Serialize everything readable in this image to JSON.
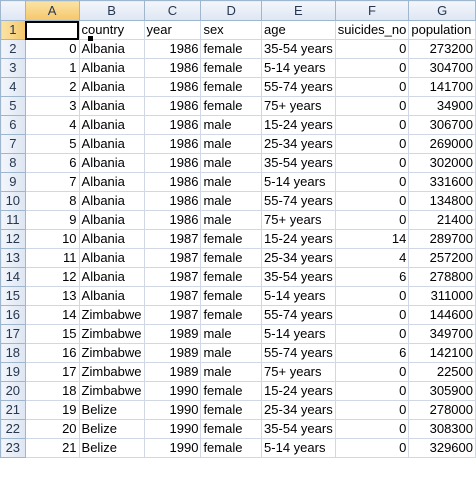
{
  "columns": [
    "A",
    "B",
    "C",
    "D",
    "E",
    "F",
    "G"
  ],
  "header_row": {
    "row_number": "1",
    "cells": [
      "",
      "country",
      "year",
      "sex",
      "age",
      "suicides_no",
      "population"
    ]
  },
  "rows": [
    {
      "n": "2",
      "cells": [
        "0",
        "Albania",
        "1986",
        "female",
        "35-54 years",
        "0",
        "273200"
      ]
    },
    {
      "n": "3",
      "cells": [
        "1",
        "Albania",
        "1986",
        "female",
        "5-14 years",
        "0",
        "304700"
      ]
    },
    {
      "n": "4",
      "cells": [
        "2",
        "Albania",
        "1986",
        "female",
        "55-74 years",
        "0",
        "141700"
      ]
    },
    {
      "n": "5",
      "cells": [
        "3",
        "Albania",
        "1986",
        "female",
        "75+ years",
        "0",
        "34900"
      ]
    },
    {
      "n": "6",
      "cells": [
        "4",
        "Albania",
        "1986",
        "male",
        "15-24 years",
        "0",
        "306700"
      ]
    },
    {
      "n": "7",
      "cells": [
        "5",
        "Albania",
        "1986",
        "male",
        "25-34 years",
        "0",
        "269000"
      ]
    },
    {
      "n": "8",
      "cells": [
        "6",
        "Albania",
        "1986",
        "male",
        "35-54 years",
        "0",
        "302000"
      ]
    },
    {
      "n": "9",
      "cells": [
        "7",
        "Albania",
        "1986",
        "male",
        "5-14 years",
        "0",
        "331600"
      ]
    },
    {
      "n": "10",
      "cells": [
        "8",
        "Albania",
        "1986",
        "male",
        "55-74 years",
        "0",
        "134800"
      ]
    },
    {
      "n": "11",
      "cells": [
        "9",
        "Albania",
        "1986",
        "male",
        "75+ years",
        "0",
        "21400"
      ]
    },
    {
      "n": "12",
      "cells": [
        "10",
        "Albania",
        "1987",
        "female",
        "15-24 years",
        "14",
        "289700"
      ]
    },
    {
      "n": "13",
      "cells": [
        "11",
        "Albania",
        "1987",
        "female",
        "25-34 years",
        "4",
        "257200"
      ]
    },
    {
      "n": "14",
      "cells": [
        "12",
        "Albania",
        "1987",
        "female",
        "35-54 years",
        "6",
        "278800"
      ]
    },
    {
      "n": "15",
      "cells": [
        "13",
        "Albania",
        "1987",
        "female",
        "5-14 years",
        "0",
        "311000"
      ]
    },
    {
      "n": "16",
      "cells": [
        "14",
        "Zimbabwe",
        "1987",
        "female",
        "55-74 years",
        "0",
        "144600"
      ]
    },
    {
      "n": "17",
      "cells": [
        "15",
        "Zimbabwe",
        "1989",
        "male",
        "5-14 years",
        "0",
        "349700"
      ]
    },
    {
      "n": "18",
      "cells": [
        "16",
        "Zimbabwe",
        "1989",
        "male",
        "55-74 years",
        "6",
        "142100"
      ]
    },
    {
      "n": "19",
      "cells": [
        "17",
        "Zimbabwe",
        "1989",
        "male",
        "75+ years",
        "0",
        "22500"
      ]
    },
    {
      "n": "20",
      "cells": [
        "18",
        "Zimbabwe",
        "1990",
        "female",
        "15-24 years",
        "0",
        "305900"
      ]
    },
    {
      "n": "21",
      "cells": [
        "19",
        "Belize",
        "1990",
        "female",
        "25-34 years",
        "0",
        "278000"
      ]
    },
    {
      "n": "22",
      "cells": [
        "20",
        "Belize",
        "1990",
        "female",
        "35-54 years",
        "0",
        "308300"
      ]
    },
    {
      "n": "23",
      "cells": [
        "21",
        "Belize",
        "1990",
        "female",
        "5-14 years",
        "0",
        "329600"
      ]
    }
  ],
  "colors": {
    "grid": "#d0d7e5",
    "header_bg": "#dde6f3",
    "active_header": "#f4c76a"
  }
}
